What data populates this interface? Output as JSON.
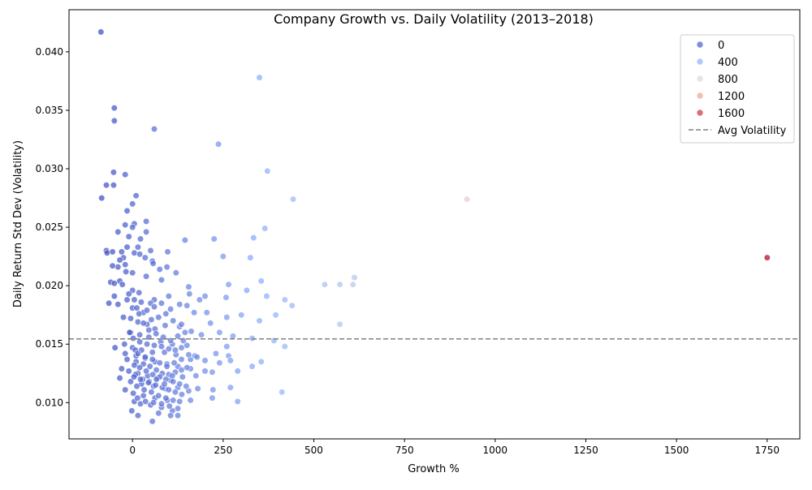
{
  "chart_data": {
    "type": "scatter",
    "title": "Company Growth vs. Daily Volatility (2013–2018)",
    "xlabel": "Growth %",
    "ylabel": "Daily Return Std Dev (Volatility)",
    "xlim": [
      -175,
      1840
    ],
    "ylim": [
      0.0069,
      0.0436
    ],
    "xticks": [
      0,
      250,
      500,
      750,
      1000,
      1250,
      1500,
      1750
    ],
    "xtick_labels": [
      "0",
      "250",
      "500",
      "750",
      "1000",
      "1250",
      "1500",
      "1750"
    ],
    "yticks": [
      0.01,
      0.015,
      0.02,
      0.025,
      0.03,
      0.035,
      0.04
    ],
    "ytick_labels": [
      "0.010",
      "0.015",
      "0.020",
      "0.025",
      "0.030",
      "0.035",
      "0.040"
    ],
    "grid": false,
    "legend_position": "top-right",
    "color_scale": {
      "name": "coolwarm",
      "min": -100,
      "max": 1760,
      "legend_values": [
        0,
        400,
        800,
        1200,
        1600
      ],
      "legend_labels": [
        "0",
        "400",
        "800",
        "1200",
        "1600"
      ]
    },
    "reference_line": {
      "label": "Avg Volatility",
      "y": 0.01545,
      "style": "dashed",
      "color": "#808080"
    },
    "points": [
      [
        -87,
        0.0417
      ],
      [
        350,
        0.0378
      ],
      [
        -50,
        0.0352
      ],
      [
        -50,
        0.0341
      ],
      [
        60,
        0.0334
      ],
      [
        237,
        0.0321
      ],
      [
        -52,
        0.0297
      ],
      [
        372,
        0.0298
      ],
      [
        -20,
        0.0295
      ],
      [
        -72,
        0.0286
      ],
      [
        -52,
        0.0286
      ],
      [
        -85,
        0.0275
      ],
      [
        443,
        0.0274
      ],
      [
        922,
        0.0274
      ],
      [
        10,
        0.0277
      ],
      [
        0,
        0.027
      ],
      [
        -15,
        0.0264
      ],
      [
        38,
        0.0255
      ],
      [
        5,
        0.0253
      ],
      [
        -20,
        0.0252
      ],
      [
        0,
        0.025
      ],
      [
        38,
        0.0246
      ],
      [
        -40,
        0.0246
      ],
      [
        365,
        0.0249
      ],
      [
        -10,
        0.0242
      ],
      [
        22,
        0.024
      ],
      [
        145,
        0.0239
      ],
      [
        225,
        0.024
      ],
      [
        334,
        0.0241
      ],
      [
        -15,
        0.0233
      ],
      [
        15,
        0.0233
      ],
      [
        50,
        0.023
      ],
      [
        97,
        0.0229
      ],
      [
        -72,
        0.023
      ],
      [
        -70,
        0.0228
      ],
      [
        -55,
        0.0229
      ],
      [
        -30,
        0.0229
      ],
      [
        5,
        0.0228
      ],
      [
        20,
        0.0227
      ],
      [
        35,
        0.0224
      ],
      [
        -25,
        0.0224
      ],
      [
        250,
        0.0225
      ],
      [
        325,
        0.0224
      ],
      [
        1750,
        0.0224
      ],
      [
        -35,
        0.0222
      ],
      [
        55,
        0.0221
      ],
      [
        57,
        0.0219
      ],
      [
        95,
        0.0216
      ],
      [
        -40,
        0.0216
      ],
      [
        -55,
        0.0217
      ],
      [
        -20,
        0.0218
      ],
      [
        -18,
        0.0212
      ],
      [
        0,
        0.0211
      ],
      [
        38,
        0.0208
      ],
      [
        120,
        0.0211
      ],
      [
        75,
        0.0214
      ],
      [
        -35,
        0.0204
      ],
      [
        -60,
        0.0203
      ],
      [
        -50,
        0.0202
      ],
      [
        -28,
        0.0201
      ],
      [
        80,
        0.0205
      ],
      [
        155,
        0.0199
      ],
      [
        265,
        0.0201
      ],
      [
        355,
        0.0204
      ],
      [
        530,
        0.0201
      ],
      [
        572,
        0.0201
      ],
      [
        608,
        0.0201
      ],
      [
        612,
        0.0207
      ],
      [
        0,
        0.0196
      ],
      [
        -10,
        0.0193
      ],
      [
        18,
        0.0194
      ],
      [
        100,
        0.0191
      ],
      [
        157,
        0.0193
      ],
      [
        200,
        0.0191
      ],
      [
        258,
        0.019
      ],
      [
        315,
        0.0196
      ],
      [
        370,
        0.0191
      ],
      [
        420,
        0.0188
      ],
      [
        440,
        0.0183
      ],
      [
        -50,
        0.0191
      ],
      [
        -15,
        0.0188
      ],
      [
        5,
        0.0188
      ],
      [
        60,
        0.0188
      ],
      [
        130,
        0.0184
      ],
      [
        185,
        0.0188
      ],
      [
        205,
        0.0177
      ],
      [
        -40,
        0.0184
      ],
      [
        -65,
        0.0185
      ],
      [
        0,
        0.0181
      ],
      [
        12,
        0.0181
      ],
      [
        30,
        0.0177
      ],
      [
        50,
        0.0185
      ],
      [
        105,
        0.018
      ],
      [
        150,
        0.0183
      ],
      [
        170,
        0.0177
      ],
      [
        260,
        0.0173
      ],
      [
        300,
        0.0175
      ],
      [
        350,
        0.017
      ],
      [
        395,
        0.0175
      ],
      [
        572,
        0.0167
      ],
      [
        -25,
        0.0173
      ],
      [
        -5,
        0.0172
      ],
      [
        15,
        0.0169
      ],
      [
        40,
        0.0167
      ],
      [
        62,
        0.0163
      ],
      [
        90,
        0.0166
      ],
      [
        130,
        0.0165
      ],
      [
        162,
        0.0161
      ],
      [
        215,
        0.0168
      ],
      [
        240,
        0.016
      ],
      [
        277,
        0.0157
      ],
      [
        330,
        0.0155
      ],
      [
        390,
        0.0153
      ],
      [
        -5,
        0.016
      ],
      [
        20,
        0.0158
      ],
      [
        45,
        0.0156
      ],
      [
        78,
        0.0152
      ],
      [
        110,
        0.015
      ],
      [
        140,
        0.0153
      ],
      [
        190,
        0.0158
      ],
      [
        -22,
        0.015
      ],
      [
        -48,
        0.0147
      ],
      [
        0,
        0.0147
      ],
      [
        25,
        0.0145
      ],
      [
        55,
        0.0143
      ],
      [
        88,
        0.0143
      ],
      [
        120,
        0.0141
      ],
      [
        160,
        0.0137
      ],
      [
        200,
        0.0136
      ],
      [
        230,
        0.0142
      ],
      [
        265,
        0.014
      ],
      [
        355,
        0.0135
      ],
      [
        420,
        0.0148
      ],
      [
        -20,
        0.0142
      ],
      [
        10,
        0.014
      ],
      [
        35,
        0.0138
      ],
      [
        62,
        0.0135
      ],
      [
        95,
        0.0133
      ],
      [
        125,
        0.0131
      ],
      [
        160,
        0.0129
      ],
      [
        200,
        0.0127
      ],
      [
        240,
        0.0134
      ],
      [
        270,
        0.0136
      ],
      [
        290,
        0.0127
      ],
      [
        330,
        0.0131
      ],
      [
        -30,
        0.0129
      ],
      [
        -10,
        0.0127
      ],
      [
        15,
        0.0125
      ],
      [
        42,
        0.0123
      ],
      [
        70,
        0.0121
      ],
      [
        105,
        0.0119
      ],
      [
        138,
        0.0122
      ],
      [
        175,
        0.0123
      ],
      [
        220,
        0.0126
      ],
      [
        -35,
        0.0121
      ],
      [
        -5,
        0.0118
      ],
      [
        25,
        0.0116
      ],
      [
        58,
        0.0114
      ],
      [
        90,
        0.0112
      ],
      [
        125,
        0.0113
      ],
      [
        155,
        0.011
      ],
      [
        180,
        0.0112
      ],
      [
        222,
        0.0111
      ],
      [
        270,
        0.0113
      ],
      [
        -20,
        0.0111
      ],
      [
        2,
        0.0108
      ],
      [
        30,
        0.0106
      ],
      [
        62,
        0.0104
      ],
      [
        96,
        0.0102
      ],
      [
        130,
        0.0101
      ],
      [
        160,
        0.0102
      ],
      [
        220,
        0.0104
      ],
      [
        290,
        0.0101
      ],
      [
        412,
        0.0109
      ],
      [
        5,
        0.0101
      ],
      [
        22,
        0.0099
      ],
      [
        50,
        0.0098
      ],
      [
        80,
        0.0096
      ],
      [
        110,
        0.0093
      ],
      [
        125,
        0.0095
      ],
      [
        -2,
        0.0093
      ],
      [
        15,
        0.0089
      ],
      [
        55,
        0.0084
      ],
      [
        105,
        0.0089
      ],
      [
        125,
        0.0089
      ],
      [
        72,
        0.0091
      ],
      [
        10,
        0.0135
      ],
      [
        30,
        0.0133
      ],
      [
        48,
        0.0131
      ],
      [
        66,
        0.0128
      ],
      [
        82,
        0.0125
      ],
      [
        100,
        0.0124
      ],
      [
        118,
        0.0126
      ],
      [
        135,
        0.0128
      ],
      [
        150,
        0.013
      ],
      [
        172,
        0.014
      ],
      [
        -15,
        0.0137
      ],
      [
        5,
        0.0132
      ],
      [
        20,
        0.013
      ],
      [
        38,
        0.0127
      ],
      [
        56,
        0.0124
      ],
      [
        75,
        0.0122
      ],
      [
        92,
        0.012
      ],
      [
        112,
        0.0118
      ],
      [
        130,
        0.0116
      ],
      [
        148,
        0.0114
      ],
      [
        8,
        0.0124
      ],
      [
        28,
        0.012
      ],
      [
        46,
        0.0118
      ],
      [
        64,
        0.0115
      ],
      [
        82,
        0.0113
      ],
      [
        100,
        0.0111
      ],
      [
        118,
        0.0109
      ],
      [
        136,
        0.0107
      ],
      [
        12,
        0.0114
      ],
      [
        32,
        0.0111
      ],
      [
        52,
        0.0109
      ],
      [
        72,
        0.0106
      ],
      [
        92,
        0.0104
      ],
      [
        112,
        0.0102
      ],
      [
        40,
        0.015
      ],
      [
        60,
        0.0149
      ],
      [
        80,
        0.0148
      ],
      [
        100,
        0.0146
      ],
      [
        118,
        0.0145
      ],
      [
        135,
        0.0147
      ],
      [
        150,
        0.0149
      ],
      [
        20,
        0.0152
      ],
      [
        2,
        0.0155
      ],
      [
        45,
        0.0162
      ],
      [
        65,
        0.0159
      ],
      [
        85,
        0.0156
      ],
      [
        105,
        0.0153
      ],
      [
        125,
        0.0157
      ],
      [
        145,
        0.016
      ],
      [
        30,
        0.0168
      ],
      [
        52,
        0.0171
      ],
      [
        72,
        0.0173
      ],
      [
        92,
        0.0176
      ],
      [
        112,
        0.017
      ],
      [
        135,
        0.0167
      ],
      [
        18,
        0.0176
      ],
      [
        40,
        0.0179
      ],
      [
        60,
        0.0182
      ],
      [
        80,
        0.0185
      ],
      [
        24,
        0.0186
      ],
      [
        8,
        0.0145
      ],
      [
        -8,
        0.016
      ],
      [
        15,
        0.0142
      ],
      [
        35,
        0.0139
      ],
      [
        55,
        0.0137
      ],
      [
        75,
        0.0134
      ],
      [
        95,
        0.0131
      ],
      [
        115,
        0.0134
      ],
      [
        135,
        0.0137
      ],
      [
        155,
        0.0141
      ],
      [
        178,
        0.0139
      ],
      [
        260,
        0.0148
      ],
      [
        4,
        0.0122
      ],
      [
        22,
        0.012
      ],
      [
        44,
        0.0117
      ],
      [
        66,
        0.012
      ],
      [
        88,
        0.0116
      ],
      [
        110,
        0.0123
      ],
      [
        14,
        0.0104
      ],
      [
        36,
        0.0101
      ],
      [
        58,
        0.01
      ],
      [
        80,
        0.0099
      ],
      [
        102,
        0.0097
      ]
    ]
  }
}
